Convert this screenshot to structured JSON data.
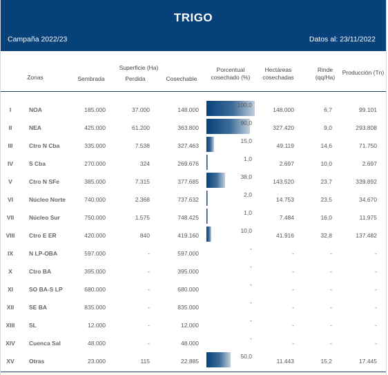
{
  "header": {
    "title": "TRIGO",
    "campaign": "Campaña 2022/23",
    "date": "Datos al: 23/11/2022"
  },
  "columns": {
    "zonas": "Zonas",
    "superficie": "Superficie (Ha)",
    "sembrada": "Sembrada",
    "perdida": "Perdida",
    "cosechable": "Cosechable",
    "porcentual_1": "Porcentual",
    "porcentual_2": "cosechado (%)",
    "hectareas_1": "Hectáreas",
    "hectareas_2": "cosechadas",
    "rinde_1": "Rinde",
    "rinde_2": "(qq/Ha)",
    "produccion": "Producción (Tn)"
  },
  "rows": [
    {
      "num": "I",
      "zone": "NOA",
      "sembrada": "185.000",
      "perdida": "37.000",
      "cosechable": "148.000",
      "pct": "100,0",
      "pct_value": 100,
      "hectareas": "148.000",
      "rinde": "6,7",
      "produccion": "99.101"
    },
    {
      "num": "II",
      "zone": "NEA",
      "sembrada": "425.000",
      "perdida": "61.200",
      "cosechable": "363.800",
      "pct": "90,0",
      "pct_value": 90,
      "hectareas": "327.420",
      "rinde": "9,0",
      "produccion": "293.808"
    },
    {
      "num": "III",
      "zone": "Ctro N Cba",
      "sembrada": "335.000",
      "perdida": "7.538",
      "cosechable": "327.463",
      "pct": "15,0",
      "pct_value": 15,
      "hectareas": "49.119",
      "rinde": "14,6",
      "produccion": "71.750"
    },
    {
      "num": "IV",
      "zone": "S Cba",
      "sembrada": "270.000",
      "perdida": "324",
      "cosechable": "269.676",
      "pct": "1,0",
      "pct_value": 1,
      "hectareas": "2.697",
      "rinde": "10,0",
      "produccion": "2.697"
    },
    {
      "num": "V",
      "zone": "Ctro N SFe",
      "sembrada": "385.000",
      "perdida": "7.315",
      "cosechable": "377.685",
      "pct": "38,0",
      "pct_value": 38,
      "hectareas": "143.520",
      "rinde": "23,7",
      "produccion": "339.892"
    },
    {
      "num": "VI",
      "zone": "Núcleo Norte",
      "sembrada": "740.000",
      "perdida": "2.368",
      "cosechable": "737.632",
      "pct": "2,0",
      "pct_value": 2,
      "hectareas": "14.753",
      "rinde": "23,5",
      "produccion": "34.670"
    },
    {
      "num": "VII",
      "zone": "Núcleo Sur",
      "sembrada": "750.000",
      "perdida": "1.575",
      "cosechable": "748.425",
      "pct": "1,0",
      "pct_value": 1,
      "hectareas": "7.484",
      "rinde": "16,0",
      "produccion": "11.975"
    },
    {
      "num": "VIII",
      "zone": "Ctro E ER",
      "sembrada": "420.000",
      "perdida": "840",
      "cosechable": "419.160",
      "pct": "10,0",
      "pct_value": 10,
      "hectareas": "41.916",
      "rinde": "32,8",
      "produccion": "137.482"
    },
    {
      "num": "IX",
      "zone": "N LP-OBA",
      "sembrada": "597.000",
      "perdida": "-",
      "cosechable": "597.000",
      "pct": "-",
      "pct_value": 0,
      "hectareas": "-",
      "rinde": "-",
      "produccion": "-"
    },
    {
      "num": "X",
      "zone": "Ctro BA",
      "sembrada": "395.000",
      "perdida": "-",
      "cosechable": "395.000",
      "pct": "-",
      "pct_value": 0,
      "hectareas": "-",
      "rinde": "-",
      "produccion": "-"
    },
    {
      "num": "XI",
      "zone": "SO BA-S LP",
      "sembrada": "680.000",
      "perdida": "-",
      "cosechable": "680.000",
      "pct": "-",
      "pct_value": 0,
      "hectareas": "-",
      "rinde": "-",
      "produccion": "-"
    },
    {
      "num": "XII",
      "zone": "SE BA",
      "sembrada": "835.000",
      "perdida": "-",
      "cosechable": "835.000",
      "pct": "-",
      "pct_value": 0,
      "hectareas": "-",
      "rinde": "-",
      "produccion": "-"
    },
    {
      "num": "XIII",
      "zone": "SL",
      "sembrada": "12.000",
      "perdida": "-",
      "cosechable": "12.000",
      "pct": "-",
      "pct_value": 0,
      "hectareas": "-",
      "rinde": "-",
      "produccion": "-"
    },
    {
      "num": "XIV",
      "zone": "Cuenca Sal",
      "sembrada": "48.000",
      "perdida": "-",
      "cosechable": "48.000",
      "pct": "-",
      "pct_value": 0,
      "hectareas": "-",
      "rinde": "-",
      "produccion": "-"
    },
    {
      "num": "XV",
      "zone": "Otras",
      "sembrada": "23.000",
      "perdida": "115",
      "cosechable": "22.885",
      "pct": "50,0",
      "pct_value": 50,
      "hectareas": "11.443",
      "rinde": "15,2",
      "produccion": "17.445"
    }
  ]
}
